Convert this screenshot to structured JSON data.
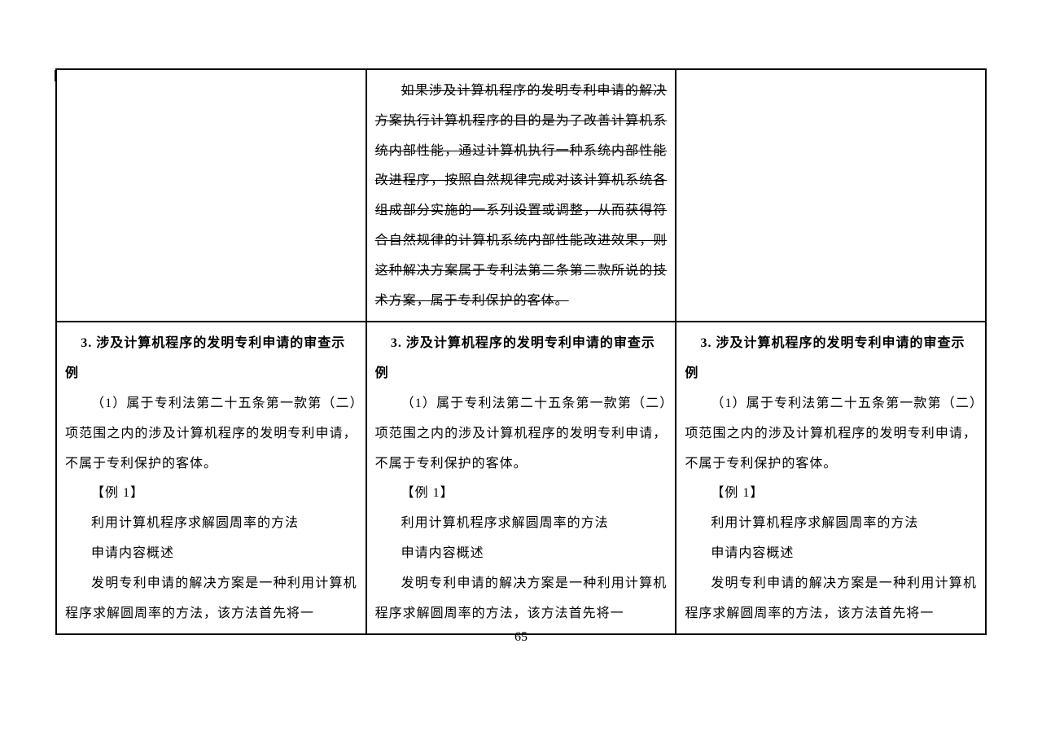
{
  "row1": {
    "col2_strike": "如果涉及计算机程序的发明专利申请的解决方案执行计算机程序的目的是为了改善计算机系统内部性能，通过计算机执行一种系统内部性能改进程序，按照自然规律完成对该计算机系统各组成部分实施的一系列设置或调整，从而获得符合自然规律的计算机系统内部性能改进效果，则这种解决方案属于专利法第二条第二款所说的技术方案，属于专利保护的客体。"
  },
  "row2": {
    "heading_num": "3. ",
    "heading_title": "涉及计算机程序的发明专利申请的审查示例",
    "p1": "（1）属于专利法第二十五条第一款第（二）项范围之内的涉及计算机程序的发明专利申请，不属于专利保护的客体。",
    "ex_label": "【例 1】",
    "p2": "利用计算机程序求解圆周率的方法",
    "p3": "申请内容概述",
    "p4": "发明专利申请的解决方案是一种利用计算机程序求解圆周率的方法，该方法首先将一"
  },
  "page_number": "65"
}
